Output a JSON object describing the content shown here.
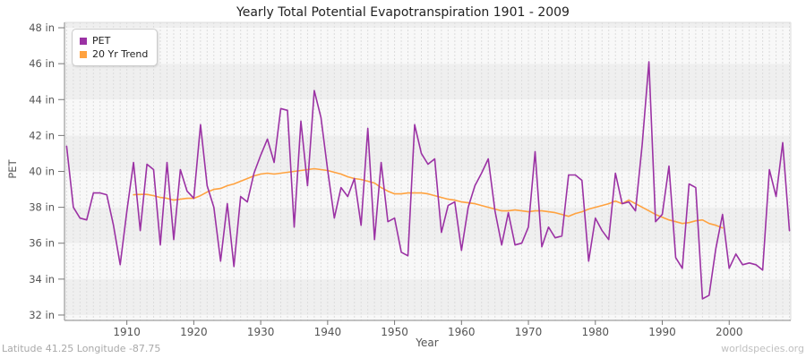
{
  "title": "Yearly Total Potential Evapotranspiration 1901 - 2009",
  "footer": {
    "left": "Latitude 41.25 Longitude -87.75",
    "right": "worldspecies.org"
  },
  "chart_data": {
    "type": "line",
    "title": "Yearly Total Potential Evapotranspiration 1901 - 2009",
    "xlabel": "Year",
    "ylabel": "PET",
    "unit": "in",
    "legend_position": "top-left",
    "grid": "yearly dashed vertical lines, alternating horizontal bands every 2 in",
    "x_range": [
      1900.68,
      2009.2
    ],
    "y_range": [
      31.7,
      48.3
    ],
    "x_ticks": [
      1910,
      1920,
      1930,
      1940,
      1950,
      1960,
      1970,
      1980,
      1990,
      2000
    ],
    "y_ticks": {
      "values": [
        48,
        46,
        44,
        42,
        40,
        38,
        36,
        34,
        32
      ],
      "labels": [
        "48 in",
        "46 in",
        "44 in",
        "42 in",
        "40 in",
        "38 in",
        "36 in",
        "34 in",
        "32 in"
      ]
    },
    "colors": {
      "pet": "#9B32A4",
      "trend": "#FFA23F",
      "band_dark": "#efefef",
      "band_light": "#f8f8f8",
      "gridline": "#dcdcdc",
      "axis": "#888888",
      "tick_text": "#555555"
    },
    "series": [
      {
        "name": "PET",
        "color": "#9B32A4",
        "x_start": 1901,
        "values": [
          41.4,
          38.0,
          37.4,
          37.3,
          38.8,
          38.8,
          38.7,
          37.0,
          34.8,
          37.8,
          40.5,
          36.7,
          40.4,
          40.1,
          35.9,
          40.5,
          36.2,
          40.1,
          38.9,
          38.5,
          42.6,
          39.2,
          38.0,
          35.0,
          38.2,
          34.7,
          38.6,
          38.3,
          39.9,
          40.9,
          41.8,
          40.5,
          43.5,
          43.4,
          36.9,
          42.8,
          39.2,
          44.5,
          43.0,
          40.1,
          37.4,
          39.1,
          38.6,
          39.6,
          37.0,
          42.4,
          36.2,
          40.5,
          37.2,
          37.4,
          35.5,
          35.3,
          42.6,
          41.0,
          40.4,
          40.7,
          36.6,
          38.1,
          38.3,
          35.6,
          38.0,
          39.2,
          39.9,
          40.7,
          37.8,
          35.9,
          37.7,
          35.9,
          36.0,
          36.9,
          41.1,
          35.8,
          36.9,
          36.3,
          36.4,
          39.8,
          39.8,
          39.5,
          35.0,
          37.4,
          36.7,
          36.2,
          39.9,
          38.2,
          38.3,
          37.8,
          41.5,
          46.1,
          37.2,
          37.6,
          40.3,
          35.2,
          34.6,
          39.3,
          39.1,
          32.9,
          33.1,
          35.7,
          37.6,
          34.6,
          35.4,
          34.8,
          34.9,
          34.8,
          34.5,
          40.1,
          38.6,
          41.6,
          36.7
        ]
      },
      {
        "name": "20 Yr Trend",
        "color": "#FFA23F",
        "x_start": 1911,
        "values": [
          38.7,
          38.72,
          38.72,
          38.65,
          38.55,
          38.5,
          38.4,
          38.45,
          38.5,
          38.5,
          38.65,
          38.85,
          39.0,
          39.05,
          39.2,
          39.3,
          39.45,
          39.6,
          39.75,
          39.85,
          39.9,
          39.85,
          39.9,
          39.95,
          40.0,
          40.05,
          40.1,
          40.15,
          40.1,
          40.05,
          39.95,
          39.85,
          39.7,
          39.6,
          39.55,
          39.45,
          39.35,
          39.1,
          38.9,
          38.75,
          38.75,
          38.8,
          38.8,
          38.8,
          38.75,
          38.65,
          38.55,
          38.45,
          38.4,
          38.3,
          38.25,
          38.2,
          38.1,
          38.0,
          37.9,
          37.8,
          37.8,
          37.85,
          37.8,
          37.75,
          37.8,
          37.8,
          37.75,
          37.7,
          37.6,
          37.5,
          37.65,
          37.75,
          37.9,
          38.0,
          38.1,
          38.2,
          38.35,
          38.2,
          38.4,
          38.2,
          38.0,
          37.8,
          37.6,
          37.45,
          37.3,
          37.2,
          37.1,
          37.15,
          37.25,
          37.3,
          37.1,
          37.0,
          36.85
        ]
      }
    ]
  }
}
